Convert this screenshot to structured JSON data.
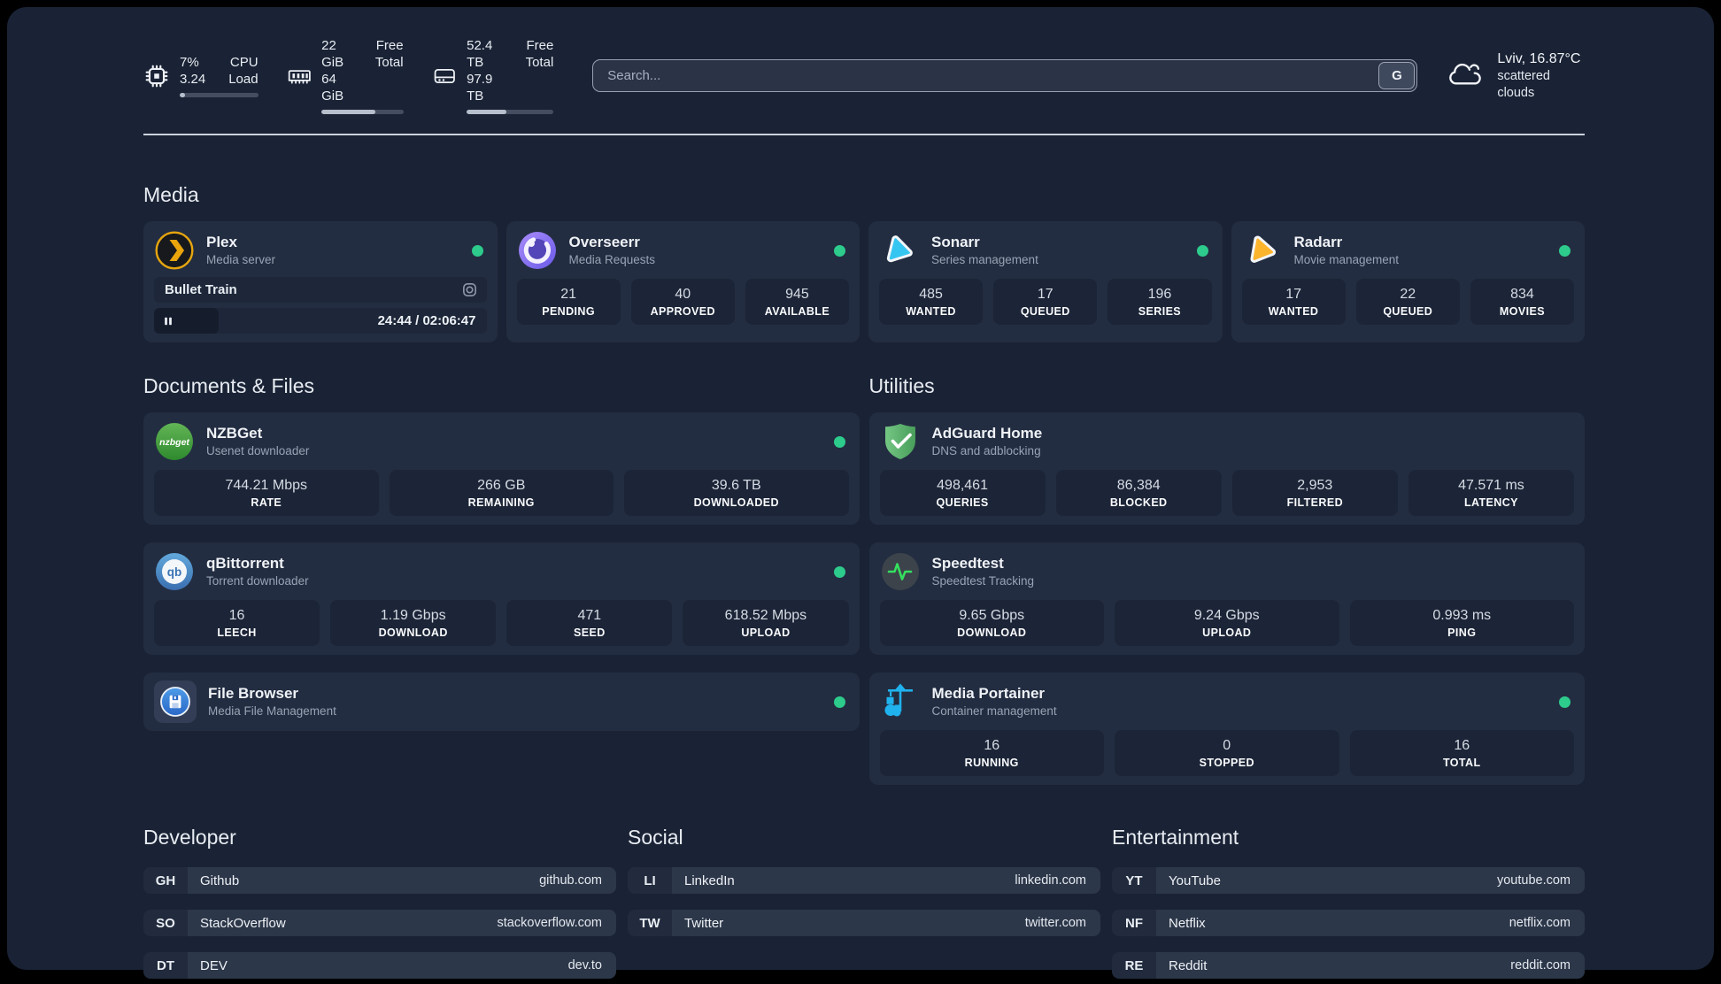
{
  "topbar": {
    "stats": [
      {
        "icon": "cpu-icon",
        "values": [
          "7%",
          "3.24"
        ],
        "labels": [
          "CPU",
          "Load"
        ],
        "progress": 7
      },
      {
        "icon": "ram-icon",
        "values": [
          "22 GiB",
          "64 GiB"
        ],
        "labels": [
          "Free",
          "Total"
        ],
        "progress": 66
      },
      {
        "icon": "disk-icon",
        "values": [
          "52.4 TB",
          "97.9 TB"
        ],
        "labels": [
          "Free",
          "Total"
        ],
        "progress": 46
      }
    ],
    "search": {
      "placeholder": "Search...",
      "button_label": "G"
    },
    "weather": {
      "location": "Lviv, 16.87°C",
      "condition": "scattered clouds"
    }
  },
  "sections": {
    "media": "Media",
    "documents": "Documents & Files",
    "utilities": "Utilities",
    "developer": "Developer",
    "social": "Social",
    "entertainment": "Entertainment"
  },
  "apps": {
    "plex": {
      "name": "Plex",
      "subtitle": "Media server",
      "now_playing": "Bullet Train",
      "time": "24:44 / 02:06:47",
      "progress": 19.5
    },
    "overseerr": {
      "name": "Overseerr",
      "subtitle": "Media Requests",
      "stats": [
        {
          "value": "21",
          "label": "PENDING"
        },
        {
          "value": "40",
          "label": "APPROVED"
        },
        {
          "value": "945",
          "label": "AVAILABLE"
        }
      ]
    },
    "sonarr": {
      "name": "Sonarr",
      "subtitle": "Series management",
      "stats": [
        {
          "value": "485",
          "label": "WANTED"
        },
        {
          "value": "17",
          "label": "QUEUED"
        },
        {
          "value": "196",
          "label": "SERIES"
        }
      ]
    },
    "radarr": {
      "name": "Radarr",
      "subtitle": "Movie management",
      "stats": [
        {
          "value": "17",
          "label": "WANTED"
        },
        {
          "value": "22",
          "label": "QUEUED"
        },
        {
          "value": "834",
          "label": "MOVIES"
        }
      ]
    },
    "nzbget": {
      "name": "NZBGet",
      "subtitle": "Usenet downloader",
      "icon_text": "nzbget",
      "stats": [
        {
          "value": "744.21 Mbps",
          "label": "RATE"
        },
        {
          "value": "266 GB",
          "label": "REMAINING"
        },
        {
          "value": "39.6 TB",
          "label": "DOWNLOADED"
        }
      ]
    },
    "adguard": {
      "name": "AdGuard Home",
      "subtitle": "DNS and adblocking",
      "stats": [
        {
          "value": "498,461",
          "label": "QUERIES"
        },
        {
          "value": "86,384",
          "label": "BLOCKED"
        },
        {
          "value": "2,953",
          "label": "FILTERED"
        },
        {
          "value": "47.571 ms",
          "label": "LATENCY"
        }
      ]
    },
    "qbittorrent": {
      "name": "qBittorrent",
      "subtitle": "Torrent downloader",
      "icon_text": "qb",
      "stats": [
        {
          "value": "16",
          "label": "LEECH"
        },
        {
          "value": "1.19 Gbps",
          "label": "DOWNLOAD"
        },
        {
          "value": "471",
          "label": "SEED"
        },
        {
          "value": "618.52 Mbps",
          "label": "UPLOAD"
        }
      ]
    },
    "speedtest": {
      "name": "Speedtest",
      "subtitle": "Speedtest Tracking",
      "stats": [
        {
          "value": "9.65 Gbps",
          "label": "DOWNLOAD"
        },
        {
          "value": "9.24 Gbps",
          "label": "UPLOAD"
        },
        {
          "value": "0.993 ms",
          "label": "PING"
        }
      ]
    },
    "filebrowser": {
      "name": "File Browser",
      "subtitle": "Media File Management"
    },
    "portainer": {
      "name": "Media Portainer",
      "subtitle": "Container management",
      "stats": [
        {
          "value": "16",
          "label": "RUNNING"
        },
        {
          "value": "0",
          "label": "STOPPED"
        },
        {
          "value": "16",
          "label": "TOTAL"
        }
      ]
    }
  },
  "bookmarks": {
    "developer": [
      {
        "abbr": "GH",
        "name": "Github",
        "url": "github.com"
      },
      {
        "abbr": "SO",
        "name": "StackOverflow",
        "url": "stackoverflow.com"
      },
      {
        "abbr": "DT",
        "name": "DEV",
        "url": "dev.to"
      }
    ],
    "social": [
      {
        "abbr": "LI",
        "name": "LinkedIn",
        "url": "linkedin.com"
      },
      {
        "abbr": "TW",
        "name": "Twitter",
        "url": "twitter.com"
      }
    ],
    "entertainment": [
      {
        "abbr": "YT",
        "name": "YouTube",
        "url": "youtube.com"
      },
      {
        "abbr": "NF",
        "name": "Netflix",
        "url": "netflix.com"
      },
      {
        "abbr": "RE",
        "name": "Reddit",
        "url": "reddit.com"
      }
    ]
  },
  "colors": {
    "status_online": "#2dcb8c",
    "plex_orange": "#e6a50e",
    "sonarr_blue": "#35c5f1",
    "radarr_yellow": "#fdb42d",
    "adguard_green": "#5cb06c",
    "portainer_blue": "#1fb2ee",
    "background": "#1a2335",
    "card": "#232d41"
  }
}
